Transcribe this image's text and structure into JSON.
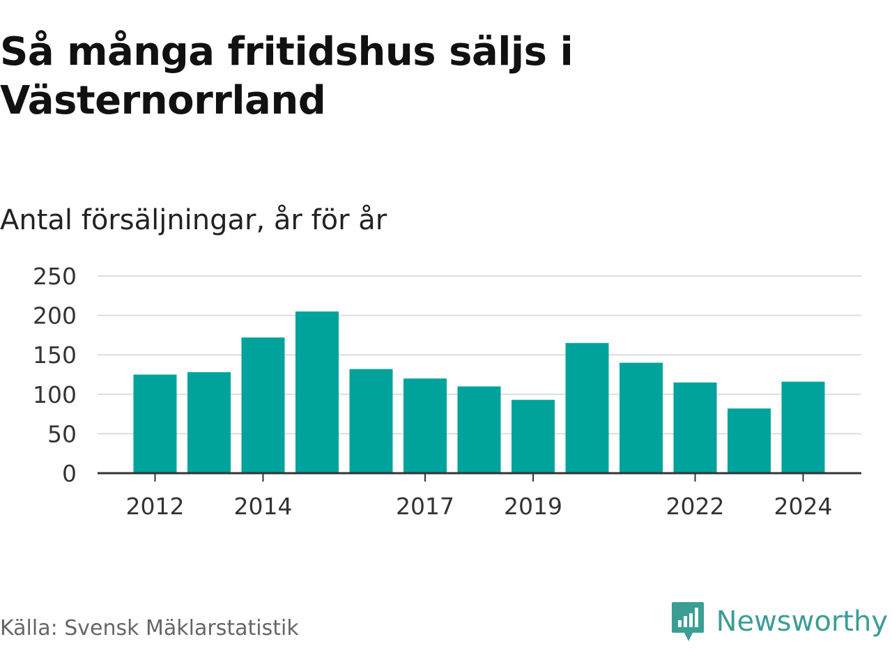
{
  "header": {
    "title": "Så många fritidshus säljs i Västernorrland",
    "subtitle": "Antal försäljningar, år för år"
  },
  "footer": {
    "source": "Källa: Svensk Mäklarstatistik",
    "brand": "Newsworthy",
    "brand_icon": "bar-chart-speech-bubble-icon"
  },
  "colors": {
    "bar": "#00a39b",
    "grid": "#dddddd",
    "axis": "#333333",
    "brand": "#3a9e94"
  },
  "chart_data": {
    "type": "bar",
    "categories": [
      "2012",
      "2013",
      "2014",
      "2015",
      "2016",
      "2017",
      "2018",
      "2019",
      "2020",
      "2021",
      "2022",
      "2023",
      "2024"
    ],
    "values": [
      125,
      128,
      172,
      205,
      132,
      120,
      110,
      93,
      165,
      140,
      115,
      82,
      116
    ],
    "x_tick_labels": [
      "2012",
      "2014",
      "2017",
      "2019",
      "2022",
      "2024"
    ],
    "y_ticks": [
      0,
      50,
      100,
      150,
      200,
      250
    ],
    "ylim": [
      0,
      250
    ],
    "title": "Så många fritidshus säljs i Västernorrland",
    "subtitle": "Antal försäljningar, år för år",
    "xlabel": "",
    "ylabel": "",
    "grid": true,
    "legend": "none"
  }
}
